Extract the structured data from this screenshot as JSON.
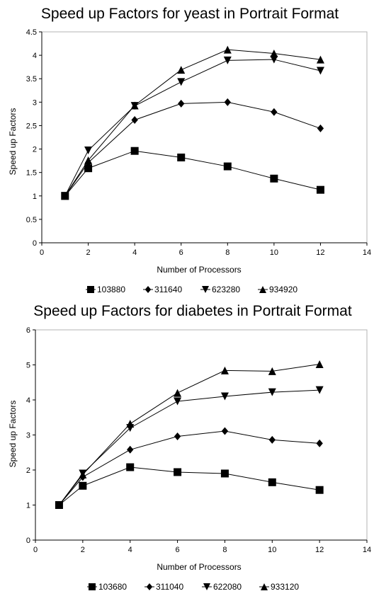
{
  "chart_data": [
    {
      "type": "line",
      "title": "Speed up Factors for yeast in Portrait Format",
      "xlabel": "Number of Processors",
      "ylabel": "Speed up Factors",
      "xlim": [
        0,
        14
      ],
      "ylim": [
        0,
        4.5
      ],
      "xticks": [
        0,
        2,
        4,
        6,
        8,
        10,
        12,
        14
      ],
      "yticks": [
        0,
        0.5,
        1,
        1.5,
        2,
        2.5,
        3,
        3.5,
        4,
        4.5
      ],
      "grid": false,
      "legend_position": "bottom",
      "x": [
        1,
        2,
        4,
        6,
        8,
        10,
        12
      ],
      "series": [
        {
          "name": "103880",
          "marker": "square",
          "values": [
            1.0,
            1.59,
            1.96,
            1.82,
            1.63,
            1.37,
            1.13
          ]
        },
        {
          "name": "311640",
          "marker": "diamond",
          "values": [
            1.0,
            1.71,
            2.62,
            2.97,
            3.0,
            2.79,
            2.44
          ]
        },
        {
          "name": "623280",
          "marker": "triangle-down",
          "values": [
            1.0,
            1.97,
            2.92,
            3.43,
            3.89,
            3.91,
            3.67
          ]
        },
        {
          "name": "934920",
          "marker": "triangle-up",
          "values": [
            1.0,
            1.76,
            2.93,
            3.69,
            4.12,
            4.04,
            3.91
          ]
        }
      ]
    },
    {
      "type": "line",
      "title": "Speed up Factors for diabetes in Portrait Format",
      "xlabel": "Number of Processors",
      "ylabel": "Speed up Factors",
      "xlim": [
        0,
        14
      ],
      "ylim": [
        0,
        6
      ],
      "xticks": [
        0,
        2,
        4,
        6,
        8,
        10,
        12,
        14
      ],
      "yticks": [
        0,
        1,
        2,
        3,
        4,
        5,
        6
      ],
      "grid": false,
      "legend_position": "bottom",
      "x": [
        1,
        2,
        4,
        6,
        8,
        10,
        12
      ],
      "series": [
        {
          "name": "103680",
          "marker": "square",
          "values": [
            1.0,
            1.55,
            2.08,
            1.94,
            1.9,
            1.65,
            1.43
          ]
        },
        {
          "name": "311040",
          "marker": "diamond",
          "values": [
            1.0,
            1.8,
            2.58,
            2.96,
            3.11,
            2.86,
            2.76
          ]
        },
        {
          "name": "622080",
          "marker": "triangle-down",
          "values": [
            1.0,
            1.9,
            3.2,
            3.96,
            4.1,
            4.22,
            4.28
          ]
        },
        {
          "name": "933120",
          "marker": "triangle-up",
          "values": [
            1.0,
            1.87,
            3.32,
            4.2,
            4.84,
            4.82,
            5.02
          ]
        }
      ]
    }
  ],
  "colors": {
    "line": "#000000",
    "axis": "#000000",
    "frame": "#b3b3b3"
  }
}
